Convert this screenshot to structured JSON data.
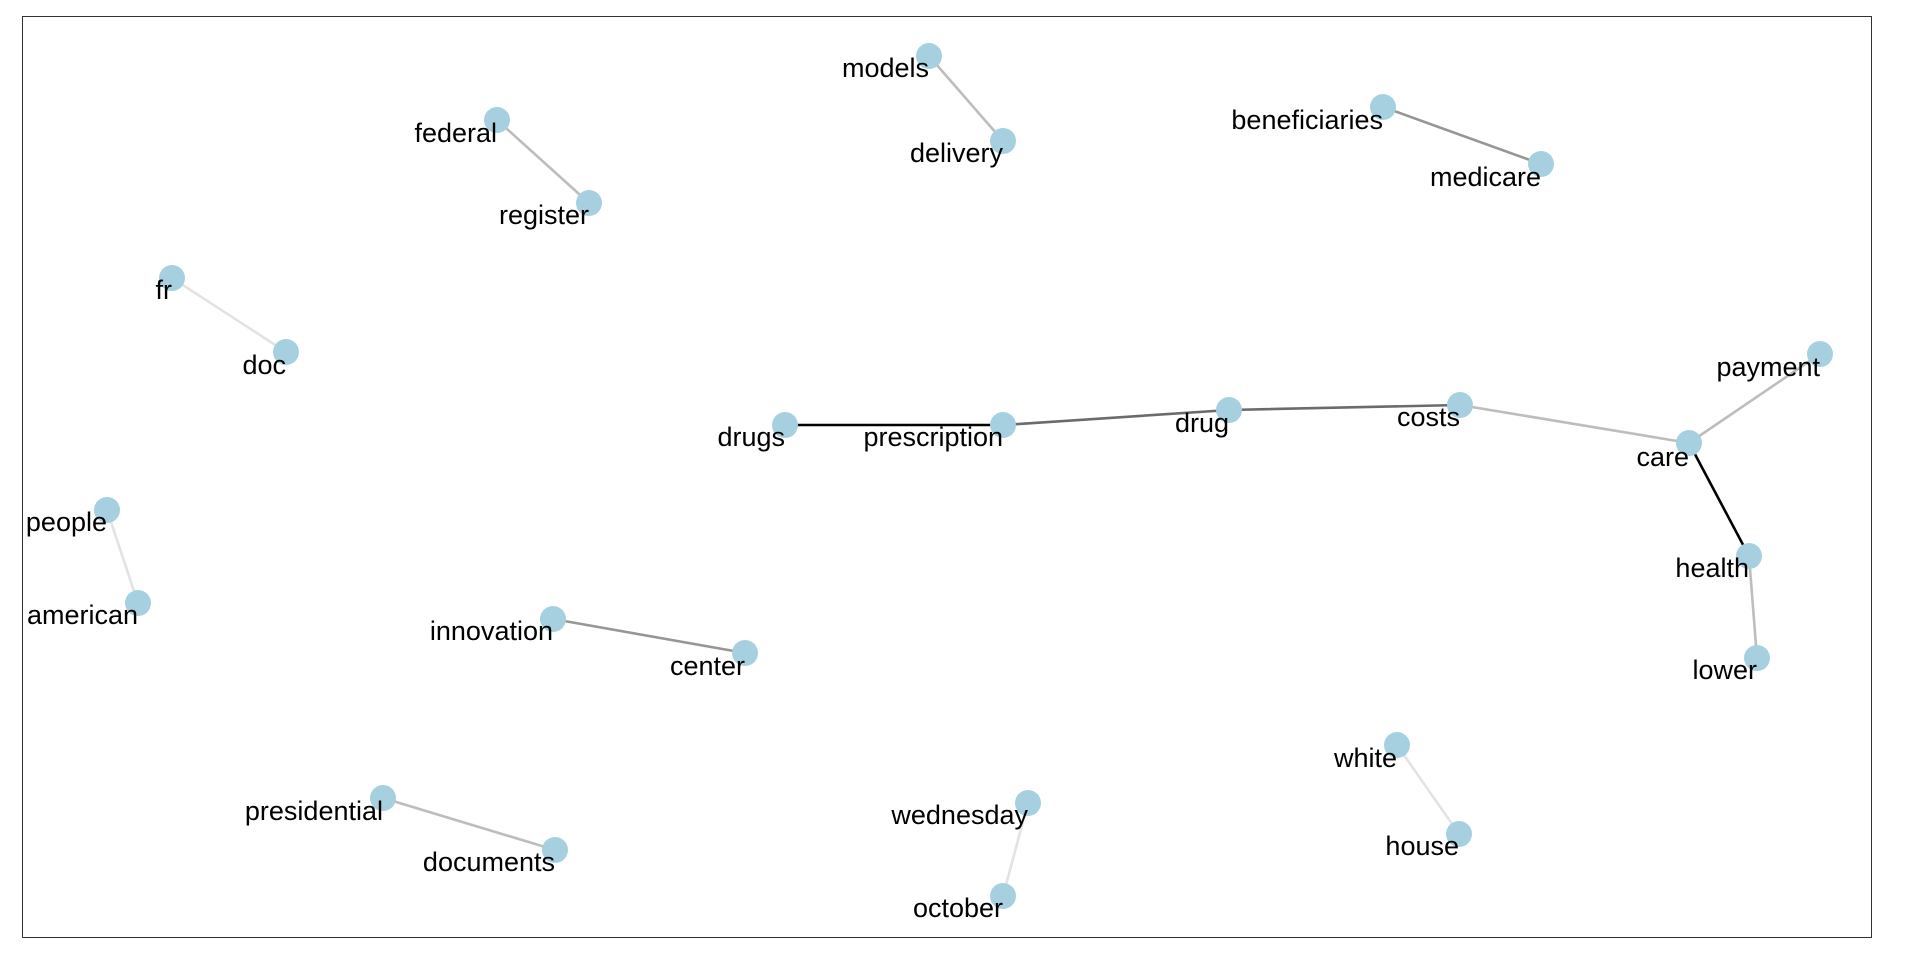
{
  "graph": {
    "node_color": "#a6d0e0",
    "nodes": [
      {
        "id": "models",
        "label": "models"
      },
      {
        "id": "delivery",
        "label": "delivery"
      },
      {
        "id": "federal",
        "label": "federal"
      },
      {
        "id": "register",
        "label": "register"
      },
      {
        "id": "beneficiaries",
        "label": "beneficiaries"
      },
      {
        "id": "medicare",
        "label": "medicare"
      },
      {
        "id": "fr",
        "label": "fr"
      },
      {
        "id": "doc",
        "label": "doc"
      },
      {
        "id": "drugs",
        "label": "drugs"
      },
      {
        "id": "prescription",
        "label": "prescription"
      },
      {
        "id": "drug",
        "label": "drug"
      },
      {
        "id": "costs",
        "label": "costs"
      },
      {
        "id": "care",
        "label": "care"
      },
      {
        "id": "payment",
        "label": "payment"
      },
      {
        "id": "health",
        "label": "health"
      },
      {
        "id": "lower",
        "label": "lower"
      },
      {
        "id": "people",
        "label": "people"
      },
      {
        "id": "american",
        "label": "american"
      },
      {
        "id": "innovation",
        "label": "innovation"
      },
      {
        "id": "center",
        "label": "center"
      },
      {
        "id": "white",
        "label": "white"
      },
      {
        "id": "house",
        "label": "house"
      },
      {
        "id": "presidential",
        "label": "presidential"
      },
      {
        "id": "documents",
        "label": "documents"
      },
      {
        "id": "wednesday",
        "label": "wednesday"
      },
      {
        "id": "october",
        "label": "october"
      }
    ],
    "edges": [
      {
        "source": "models",
        "target": "delivery",
        "color": "#bdbdbd"
      },
      {
        "source": "federal",
        "target": "register",
        "color": "#bdbdbd"
      },
      {
        "source": "beneficiaries",
        "target": "medicare",
        "color": "#969696"
      },
      {
        "source": "fr",
        "target": "doc",
        "color": "#e3e3e3"
      },
      {
        "source": "drugs",
        "target": "prescription",
        "color": "#000000"
      },
      {
        "source": "prescription",
        "target": "drug",
        "color": "#6b6b6b"
      },
      {
        "source": "drug",
        "target": "costs",
        "color": "#6b6b6b"
      },
      {
        "source": "costs",
        "target": "care",
        "color": "#bdbdbd"
      },
      {
        "source": "care",
        "target": "payment",
        "color": "#bdbdbd"
      },
      {
        "source": "care",
        "target": "health",
        "color": "#000000"
      },
      {
        "source": "health",
        "target": "lower",
        "color": "#bdbdbd"
      },
      {
        "source": "people",
        "target": "american",
        "color": "#e3e3e3"
      },
      {
        "source": "innovation",
        "target": "center",
        "color": "#969696"
      },
      {
        "source": "white",
        "target": "house",
        "color": "#e3e3e3"
      },
      {
        "source": "presidential",
        "target": "documents",
        "color": "#bdbdbd"
      },
      {
        "source": "wednesday",
        "target": "october",
        "color": "#e3e3e3"
      }
    ]
  }
}
